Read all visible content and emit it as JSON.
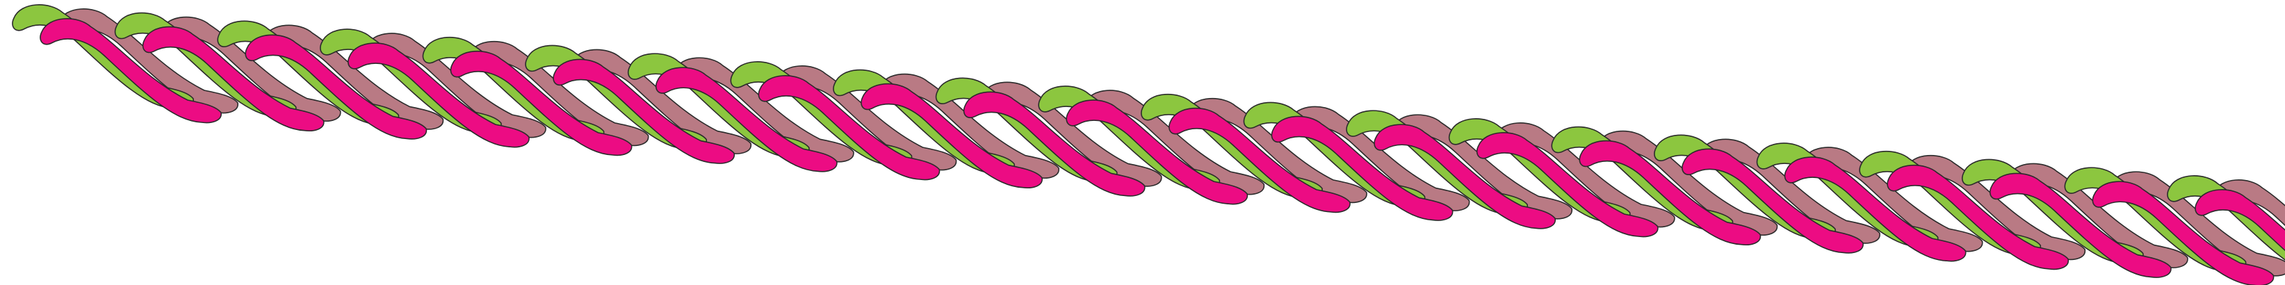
{
  "artwork": {
    "name": "braided-ribbon-illustration",
    "ribbon_count": 22,
    "strands_per_ribbon": 3,
    "colors": {
      "green": "#8cc63f",
      "mauve": "#b97a84",
      "pink": "#ec0c83",
      "outline": "#2b2b2b",
      "background": "#ffffff"
    },
    "strand_order": [
      "mauve",
      "green",
      "pink"
    ]
  }
}
